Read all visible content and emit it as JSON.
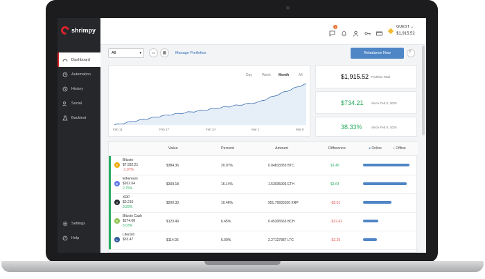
{
  "brand": {
    "name": "shrimpy",
    "color": "#d8232a"
  },
  "sidebar": {
    "items": [
      {
        "label": "Dashboard",
        "icon": "dashboard-icon",
        "active": true
      },
      {
        "label": "Automation",
        "icon": "automation-icon"
      },
      {
        "label": "History",
        "icon": "history-icon"
      },
      {
        "label": "Social",
        "icon": "social-icon"
      },
      {
        "label": "Backtest",
        "icon": "backtest-icon"
      }
    ],
    "bottom": [
      {
        "label": "Settings",
        "icon": "gear-icon"
      },
      {
        "label": "Help",
        "icon": "help-icon"
      }
    ]
  },
  "topbar": {
    "notification_count": "3",
    "user": "GUEST",
    "balance": "$1,915.52"
  },
  "toolbar": {
    "exchange_select": "All",
    "manage_link": "Manage Portfolios",
    "rebalance_label": "Rebalance Now"
  },
  "chart": {
    "ranges": [
      "Day",
      "Week",
      "Month",
      "All"
    ],
    "selected_range": "Month",
    "x_ticks": [
      "Feb 11",
      "Feb 17",
      "Feb 24",
      "Mar 1",
      "Mar 8"
    ]
  },
  "chart_data": {
    "type": "area",
    "x": [
      "Feb 11",
      "Feb 17",
      "Feb 24",
      "Mar 1",
      "Mar 8"
    ],
    "series": [
      {
        "values": [
          0.0,
          0.22,
          0.38,
          0.55,
          1.0
        ]
      }
    ]
  },
  "stats": [
    {
      "value": "$1,915.52",
      "label": "Portfolio Total",
      "color": "#333333"
    },
    {
      "value": "$734.21",
      "label": "Since Feb 9, 2020",
      "color": "#27ae60"
    },
    {
      "value": "38.33%",
      "label": "Since Feb 9, 2020",
      "color": "#27ae60"
    }
  ],
  "table": {
    "headers": [
      "Value",
      "Percent",
      "Amount",
      "Difference"
    ],
    "legend_online": "Online",
    "legend_offline": "Offline",
    "rows": [
      {
        "name": "Bitcoin",
        "price": "$7,932.21",
        "change": "-1.07%",
        "value": "$384.36",
        "percent": "20.07%",
        "amount": "0.04833355 BTC",
        "difference": "$1.45",
        "bar": 0.95,
        "color": "#f2a900",
        "symbol": "B"
      },
      {
        "name": "Ethereum",
        "price": "$202.04",
        "change": "2.75%",
        "value": "$309.18",
        "percent": "16.14%",
        "amount": "1.53035903 ETH",
        "difference": "$3.64",
        "bar": 0.9,
        "color": "#627eea",
        "symbol": "E"
      },
      {
        "name": "XRP",
        "price": "$0.210",
        "change": "3.29%",
        "value": "$200.33",
        "percent": "10.46%",
        "amount": "951.79933100 XRP",
        "difference": "-$2.01",
        "bar": 0.58,
        "color": "#23292f",
        "symbol": "X"
      },
      {
        "name": "Bitcoin Cash",
        "price": "$274.08",
        "change": "5.03%",
        "value": "$123.49",
        "percent": "6.45%",
        "amount": "0.45306563 BCH",
        "difference": "-$22.41",
        "bar": 0.32,
        "color": "#8dc351",
        "symbol": "B"
      },
      {
        "name": "Litecoin",
        "price": "$53.47",
        "change": "",
        "value": "$114.93",
        "percent": "6.00%",
        "amount": "2.27127887 LTC",
        "difference": "-$2.29",
        "bar": 0.28,
        "color": "#345d9d",
        "symbol": "L"
      }
    ]
  }
}
